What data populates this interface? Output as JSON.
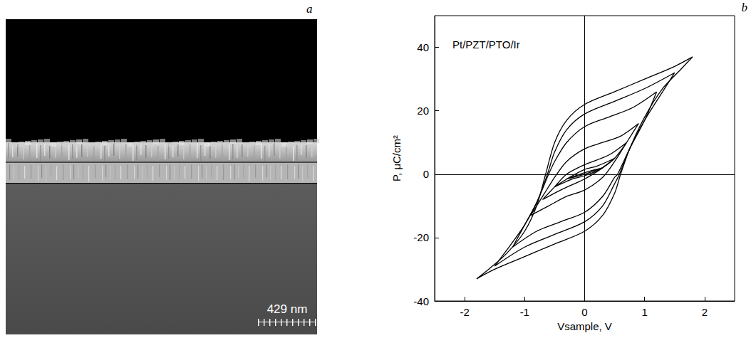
{
  "panel_a": {
    "panel_label": "a",
    "scale_bar_label": "429 nm"
  },
  "chart_data": {
    "type": "line",
    "panel_label": "b",
    "annotations": [
      "Pt/PZT/PTO/Ir"
    ],
    "xlabel": "Vsample, V",
    "ylabel": "P, μC/cm²",
    "xlim": [
      -2.5,
      2.5
    ],
    "xticks": [
      -2,
      -1,
      0,
      1,
      2
    ],
    "ylim": [
      -40,
      50
    ],
    "yticks": [
      -40,
      -20,
      0,
      20,
      40
    ],
    "grid": false,
    "marker": "none",
    "line_style": "solid",
    "series": [
      {
        "color": "#000000",
        "x": [
          1.8,
          1.5,
          1.0,
          0.5,
          0,
          -0.3,
          -0.5,
          -0.65,
          -0.8,
          -1.0,
          -1.3,
          -1.6,
          -1.8,
          -1.5,
          -1.0,
          -0.5,
          0,
          0.3,
          0.5,
          0.6,
          0.75,
          1.0,
          1.3,
          1.6,
          1.8
        ],
        "values": [
          37,
          34,
          30,
          26,
          22,
          17,
          10,
          0,
          -10,
          -18,
          -25,
          -30,
          -33,
          -30,
          -26,
          -22,
          -18,
          -13,
          -6,
          0,
          8,
          18,
          27,
          33,
          37
        ]
      },
      {
        "color": "#000000",
        "x": [
          1.5,
          1.0,
          0.5,
          0,
          -0.3,
          -0.5,
          -0.62,
          -0.8,
          -1.0,
          -1.3,
          -1.5,
          -1.0,
          -0.5,
          0,
          0.3,
          0.5,
          0.58,
          0.75,
          1.0,
          1.3,
          1.5
        ],
        "values": [
          32,
          27,
          23,
          19,
          14,
          7,
          0,
          -9,
          -16,
          -24,
          -29,
          -23,
          -19,
          -15,
          -10,
          -3,
          0,
          8,
          17,
          26,
          32
        ]
      },
      {
        "color": "#000000",
        "x": [
          1.2,
          0.8,
          0.4,
          0,
          -0.3,
          -0.5,
          -0.6,
          -0.8,
          -1.0,
          -1.2,
          -0.8,
          -0.4,
          0,
          0.3,
          0.5,
          0.55,
          0.75,
          1.0,
          1.2
        ],
        "values": [
          26,
          21,
          18,
          15,
          10,
          4,
          0,
          -9,
          -16,
          -23,
          -18,
          -15,
          -12,
          -7,
          -1,
          0,
          8,
          17,
          26
        ]
      },
      {
        "color": "#000000",
        "x": [
          0.9,
          0.6,
          0.3,
          0,
          -0.3,
          -0.5,
          -0.7,
          -0.9,
          -0.6,
          -0.3,
          0,
          0.3,
          0.5,
          0.7,
          0.9
        ],
        "values": [
          16,
          12,
          10,
          8,
          4,
          -1,
          -7,
          -13,
          -10,
          -7,
          -5,
          -1,
          4,
          10,
          16
        ]
      },
      {
        "color": "#000000",
        "x": [
          0.7,
          0.4,
          0,
          -0.3,
          -0.5,
          -0.7,
          -0.4,
          0,
          0.3,
          0.5,
          0.7
        ],
        "values": [
          10,
          6,
          3,
          0,
          -4,
          -8,
          -5,
          -1.5,
          2,
          5,
          10
        ]
      },
      {
        "color": "#000000",
        "x": [
          0.5,
          0.2,
          0,
          -0.25,
          -0.5,
          -0.2,
          0,
          0.25,
          0.5
        ],
        "values": [
          5,
          2.5,
          1.5,
          -1,
          -4,
          -1.5,
          -0.5,
          1.5,
          5
        ]
      },
      {
        "color": "#000000",
        "x": [
          0.3,
          0,
          -0.3,
          0,
          0.3
        ],
        "values": [
          2,
          0.5,
          -1.5,
          0,
          2
        ]
      }
    ]
  }
}
